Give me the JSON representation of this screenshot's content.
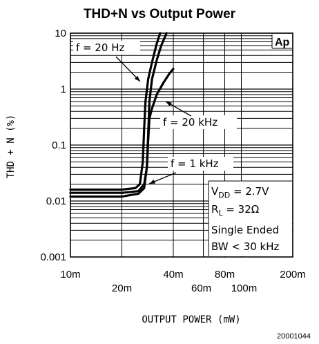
{
  "chart_data": {
    "type": "line",
    "title": "THD+N vs Output Power",
    "xlabel": "OUTPUT POWER (mW)",
    "ylabel": "THD + N (%)",
    "x_scale": "log",
    "y_scale": "log",
    "xlim": [
      10,
      200
    ],
    "ylim": [
      0.001,
      10
    ],
    "x_ticks": [
      {
        "value": 10,
        "label": "10m"
      },
      {
        "value": 20,
        "label": "20m"
      },
      {
        "value": 40,
        "label": "40m"
      },
      {
        "value": 60,
        "label": "60m"
      },
      {
        "value": 80,
        "label": "80m"
      },
      {
        "value": 100,
        "label": "100m"
      },
      {
        "value": 200,
        "label": "200m"
      }
    ],
    "y_ticks": [
      {
        "value": 0.001,
        "label": "0.001"
      },
      {
        "value": 0.01,
        "label": "0.01"
      },
      {
        "value": 0.1,
        "label": "0.1"
      },
      {
        "value": 1,
        "label": "1"
      },
      {
        "value": 10,
        "label": "10"
      }
    ],
    "grid": true,
    "series": [
      {
        "name": "f = 20 Hz",
        "x": [
          10,
          15,
          20,
          24,
          25.5,
          26.5,
          27,
          27.5,
          28.5,
          30,
          32,
          33.5
        ],
        "y": [
          0.016,
          0.016,
          0.016,
          0.017,
          0.02,
          0.05,
          0.2,
          0.6,
          1.5,
          3,
          6.5,
          10
        ]
      },
      {
        "name": "f = 1 kHz",
        "x": [
          10,
          15,
          20,
          25,
          27,
          28,
          28.5,
          29,
          30,
          32,
          34,
          36.5
        ],
        "y": [
          0.012,
          0.012,
          0.012,
          0.0135,
          0.017,
          0.04,
          0.15,
          0.6,
          1.5,
          3.3,
          6,
          10
        ]
      },
      {
        "name": "f = 20 kHz",
        "x": [
          10,
          15,
          20,
          25,
          27,
          28,
          28.5,
          29,
          30,
          32,
          35,
          38,
          40
        ],
        "y": [
          0.014,
          0.014,
          0.014,
          0.015,
          0.02,
          0.04,
          0.12,
          0.3,
          0.45,
          0.8,
          1.3,
          1.9,
          2.3
        ]
      }
    ],
    "annotations": {
      "series_labels": [
        "f = 20 Hz",
        "f = 20 kHz",
        "f = 1 kHz"
      ],
      "conditions": [
        {
          "main": "V",
          "sub": "DD",
          "rest": " = 2.7V"
        },
        {
          "main": "R",
          "sub": "L",
          "rest": " = 32Ω"
        },
        {
          "main": "Single Ended",
          "sub": "",
          "rest": ""
        },
        {
          "main": "BW < 30 kHz",
          "sub": "",
          "rest": ""
        }
      ],
      "corner_mark": "Ap",
      "figure_code": "20001044"
    }
  }
}
